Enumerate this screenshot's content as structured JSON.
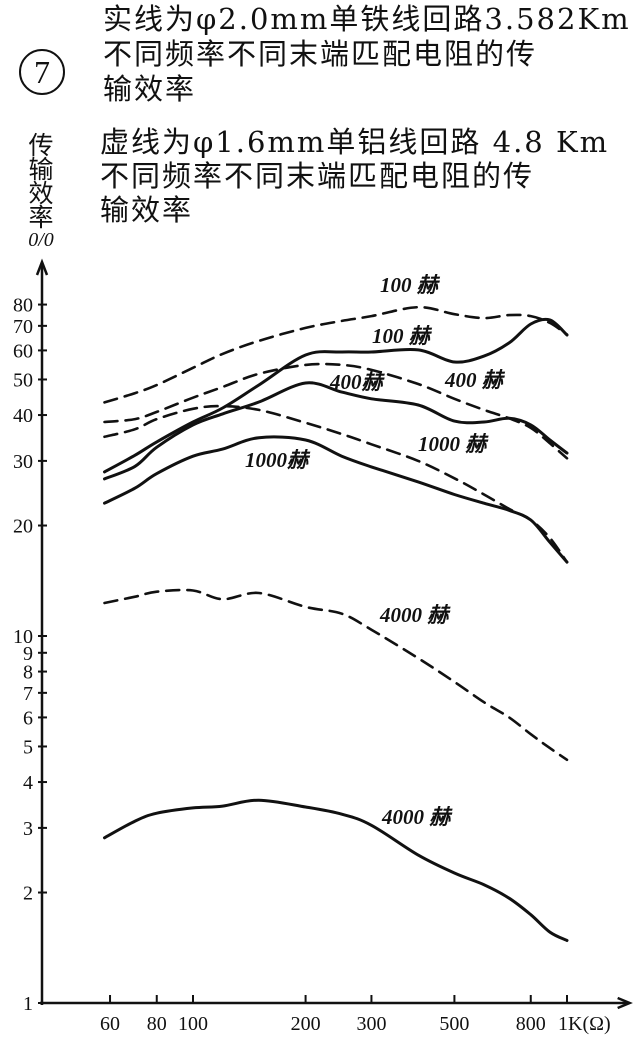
{
  "figure_number": "7",
  "solid_note": {
    "lines": [
      "实线为φ2.0mm单铁线回路3.582Km",
      "不同频率不同末端匹配电阻的传",
      "输效率"
    ]
  },
  "dashed_note": {
    "lines": [
      "虚线为φ1.6mm单铝线回路 4.8 Km",
      "不同频率不同末端匹配电阻的传",
      "输效率"
    ]
  },
  "colors": {
    "ink": "#111111",
    "paper": "#ffffff"
  },
  "chart_data": {
    "type": "line",
    "title": "",
    "xlabel": "",
    "ylabel": "传输效率",
    "ylabel_unit": "0/0",
    "x_log": true,
    "y_log": true,
    "grid": false,
    "xlim": [
      40,
      1400
    ],
    "ylim": [
      1,
      100
    ],
    "x_ticks": [
      60,
      80,
      100,
      200,
      300,
      500,
      800,
      1000
    ],
    "x_tick_labels": [
      "60",
      "80",
      "100",
      "200",
      "300",
      "500",
      "800",
      "1K(Ω)"
    ],
    "y_ticks": [
      1,
      2,
      3,
      4,
      5,
      6,
      7,
      8,
      9,
      10,
      20,
      30,
      40,
      50,
      60,
      70,
      80
    ],
    "y_tick_labels": [
      "1",
      "2",
      "3",
      "4",
      "5",
      "6",
      "7",
      "8",
      "9",
      "10",
      "20",
      "30",
      "40",
      "50",
      "60",
      "70",
      "80"
    ],
    "x": [
      58,
      70,
      80,
      100,
      120,
      150,
      200,
      250,
      300,
      400,
      500,
      600,
      700,
      800,
      900,
      1000
    ],
    "series": [
      {
        "label": "100 赫",
        "dashed": true,
        "y": [
          43.3,
          45.9,
          48.3,
          53.8,
          58.7,
          63.7,
          69.1,
          72.2,
          74.4,
          78.7,
          75.3,
          73.5,
          74.9,
          74.4,
          71.3,
          66.3
        ]
      },
      {
        "label": "100 赫",
        "dashed": false,
        "y": [
          28.0,
          31.1,
          33.8,
          38.3,
          41.8,
          48.3,
          58.3,
          59.4,
          59.4,
          60.2,
          55.8,
          57.9,
          62.9,
          70.8,
          72.6,
          66.1
        ]
      },
      {
        "label": "400 赫",
        "dashed": true,
        "y": [
          38.3,
          39.0,
          40.8,
          44.6,
          47.7,
          51.8,
          54.8,
          54.8,
          53.1,
          48.6,
          44.3,
          41.3,
          39.2,
          36.9,
          33.5,
          30.5
        ]
      },
      {
        "label": "400赫",
        "dashed": false,
        "y": [
          26.8,
          29.0,
          32.7,
          37.6,
          40.3,
          43.4,
          48.9,
          46.2,
          44.3,
          42.6,
          38.5,
          38.3,
          39.2,
          37.6,
          34.2,
          31.5
        ]
      },
      {
        "label": "1000 赫",
        "dashed": true,
        "y": [
          34.9,
          36.6,
          39.0,
          41.6,
          42.3,
          41.3,
          38.1,
          35.5,
          33.3,
          30.0,
          26.9,
          24.3,
          22.2,
          20.7,
          18.5,
          15.9
        ]
      },
      {
        "label": "1000赫",
        "dashed": false,
        "y": [
          23.0,
          25.3,
          27.7,
          30.9,
          32.3,
          34.7,
          34.2,
          30.9,
          28.9,
          26.3,
          24.3,
          23.0,
          22.0,
          20.7,
          18.0,
          15.9
        ]
      },
      {
        "label": "4000 赫",
        "dashed": true,
        "y": [
          12.3,
          12.8,
          13.2,
          13.3,
          12.6,
          13.1,
          12.0,
          11.5,
          10.4,
          8.7,
          7.5,
          6.6,
          6.0,
          5.4,
          4.95,
          4.6
        ]
      },
      {
        "label": "4000 赫",
        "dashed": false,
        "y": [
          2.82,
          3.13,
          3.29,
          3.4,
          3.44,
          3.57,
          3.42,
          3.27,
          3.05,
          2.53,
          2.26,
          2.1,
          1.93,
          1.74,
          1.56,
          1.48
        ]
      }
    ]
  }
}
